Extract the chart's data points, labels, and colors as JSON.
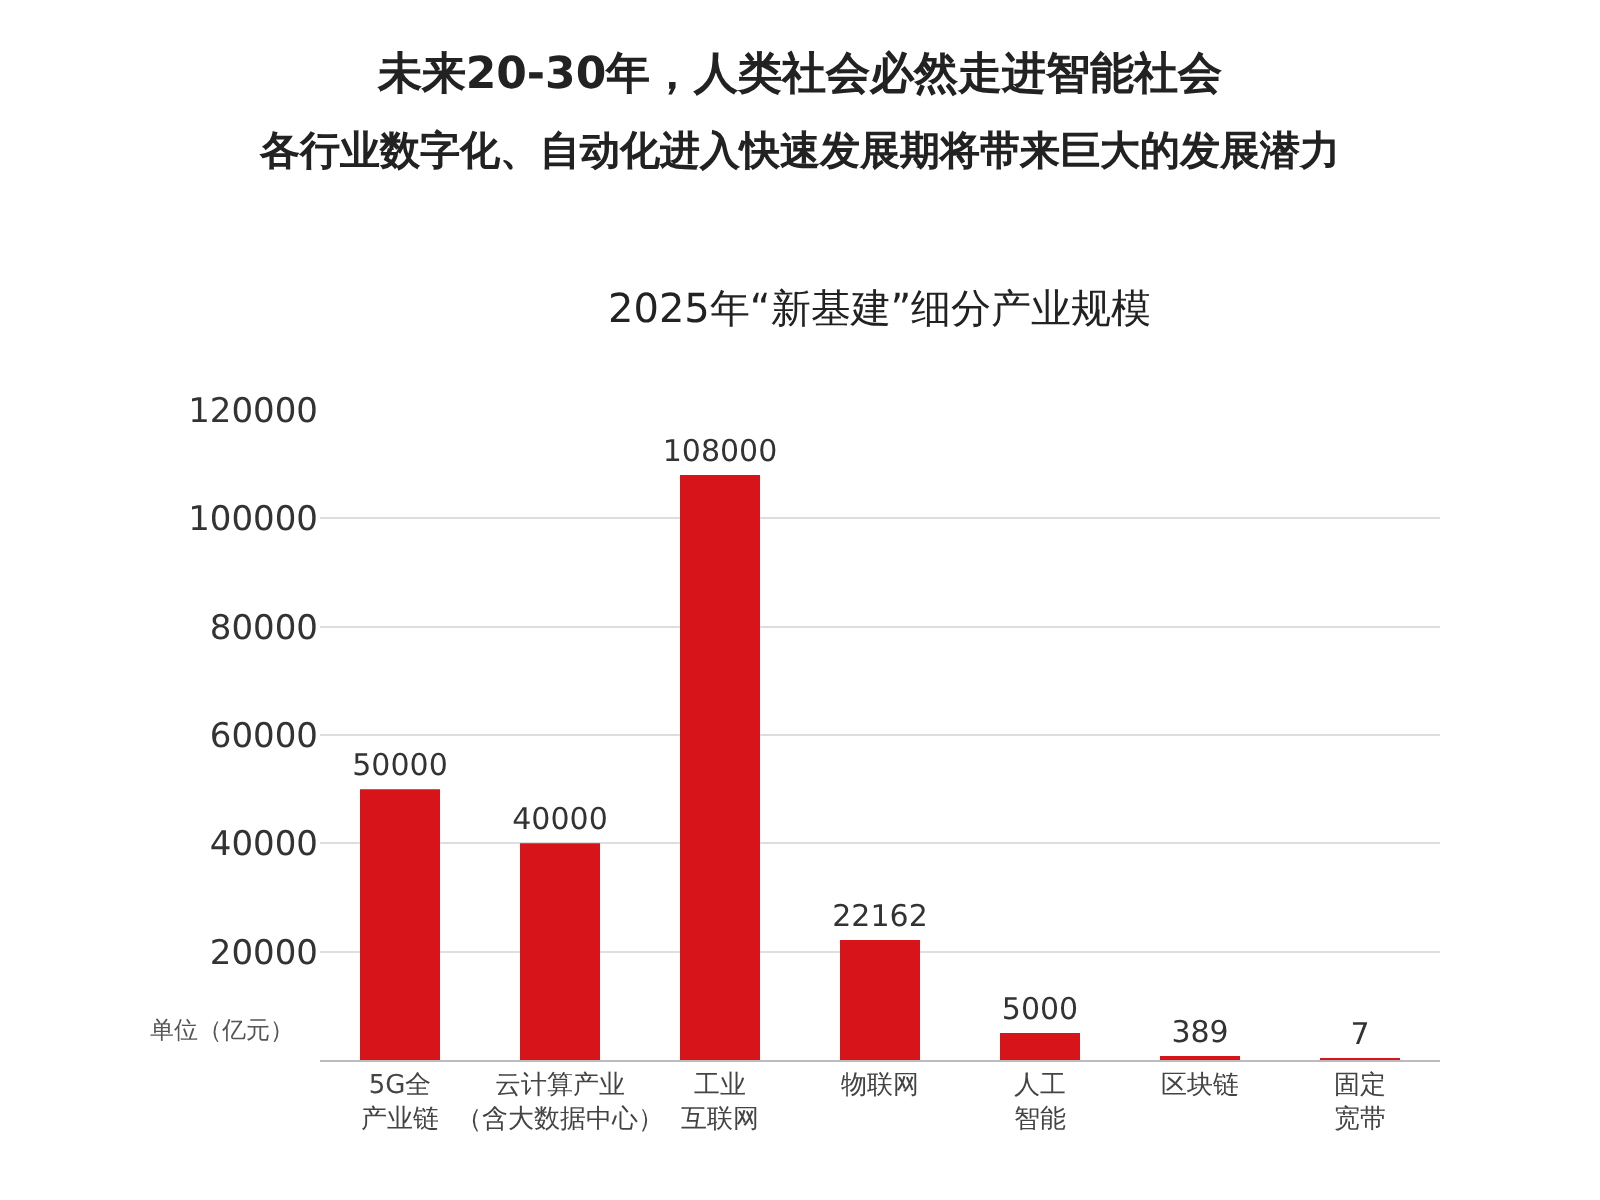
{
  "chart_data": {
    "type": "bar",
    "title": "未来20-30年，人类社会必然走进智能社会",
    "subtitle": "各行业数字化、自动化进入快速发展期将带来巨大的发展潜力",
    "annotations": [
      "2025年“新基建”细分产业规模",
      "单位（亿元）"
    ],
    "categories": [
      "5G全产业链",
      "云计算产业（含大数据中心）",
      "工业互联网",
      "物联网",
      "人工智能",
      "区块链",
      "固定宽带"
    ],
    "values": [
      50000,
      40000,
      108000,
      22162,
      5000,
      389,
      7
    ],
    "color": "#d7141a",
    "data_labels": true,
    "ylim": [
      0,
      120000
    ],
    "yticks": [
      20000,
      40000,
      60000,
      80000,
      100000,
      120000
    ],
    "grid": "y"
  }
}
